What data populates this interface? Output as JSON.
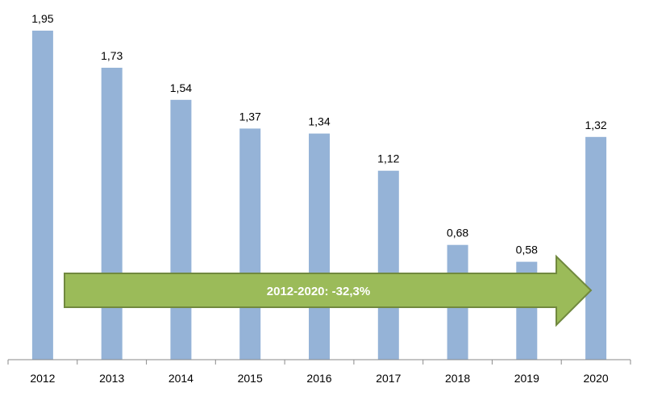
{
  "chart_data": {
    "type": "bar",
    "categories": [
      "2012",
      "2013",
      "2014",
      "2015",
      "2016",
      "2017",
      "2018",
      "2019",
      "2020"
    ],
    "values": [
      1.95,
      1.73,
      1.54,
      1.37,
      1.34,
      1.12,
      0.68,
      0.58,
      1.32
    ],
    "value_labels": [
      "1,95",
      "1,73",
      "1,54",
      "1,37",
      "1,34",
      "1,12",
      "0,68",
      "0,58",
      "1,32"
    ],
    "ylim": [
      0,
      1.95
    ],
    "grid": false,
    "bar_color": "#95b3d7",
    "annotation": {
      "text": "2012-2020: -32,3%",
      "fill_color": "#9bbb59",
      "border_color": "#71893f",
      "text_color": "#ffffff"
    }
  }
}
